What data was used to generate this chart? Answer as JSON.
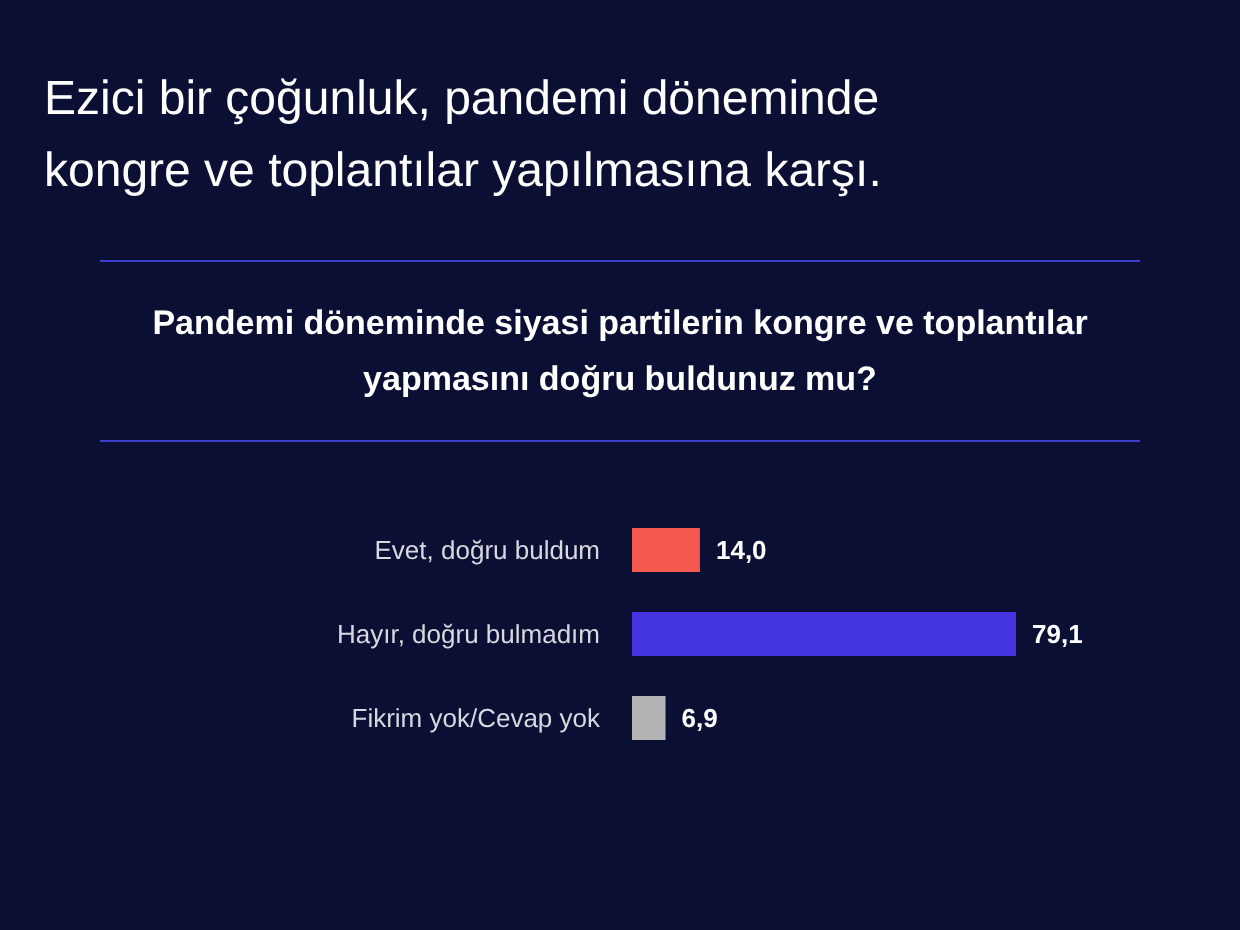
{
  "chart_data": {
    "type": "bar",
    "orientation": "horizontal",
    "title": "Ezici bir çoğunluk, pandemi döneminde kongre ve toplantılar yapılmasına karşı.",
    "subtitle": "Pandemi döneminde siyasi partilerin kongre ve toplantılar yapmasını doğru buldunuz mu?",
    "categories": [
      "Evet, doğru buldum",
      "Hayır, doğru bulmadım",
      "Fikrim yok/Cevap yok"
    ],
    "values": [
      14.0,
      79.1,
      6.9
    ],
    "colors": [
      "#f5584f",
      "#4433e0",
      "#b4b4b4"
    ],
    "value_labels": [
      "14,0",
      "79,1",
      "6,9"
    ]
  }
}
